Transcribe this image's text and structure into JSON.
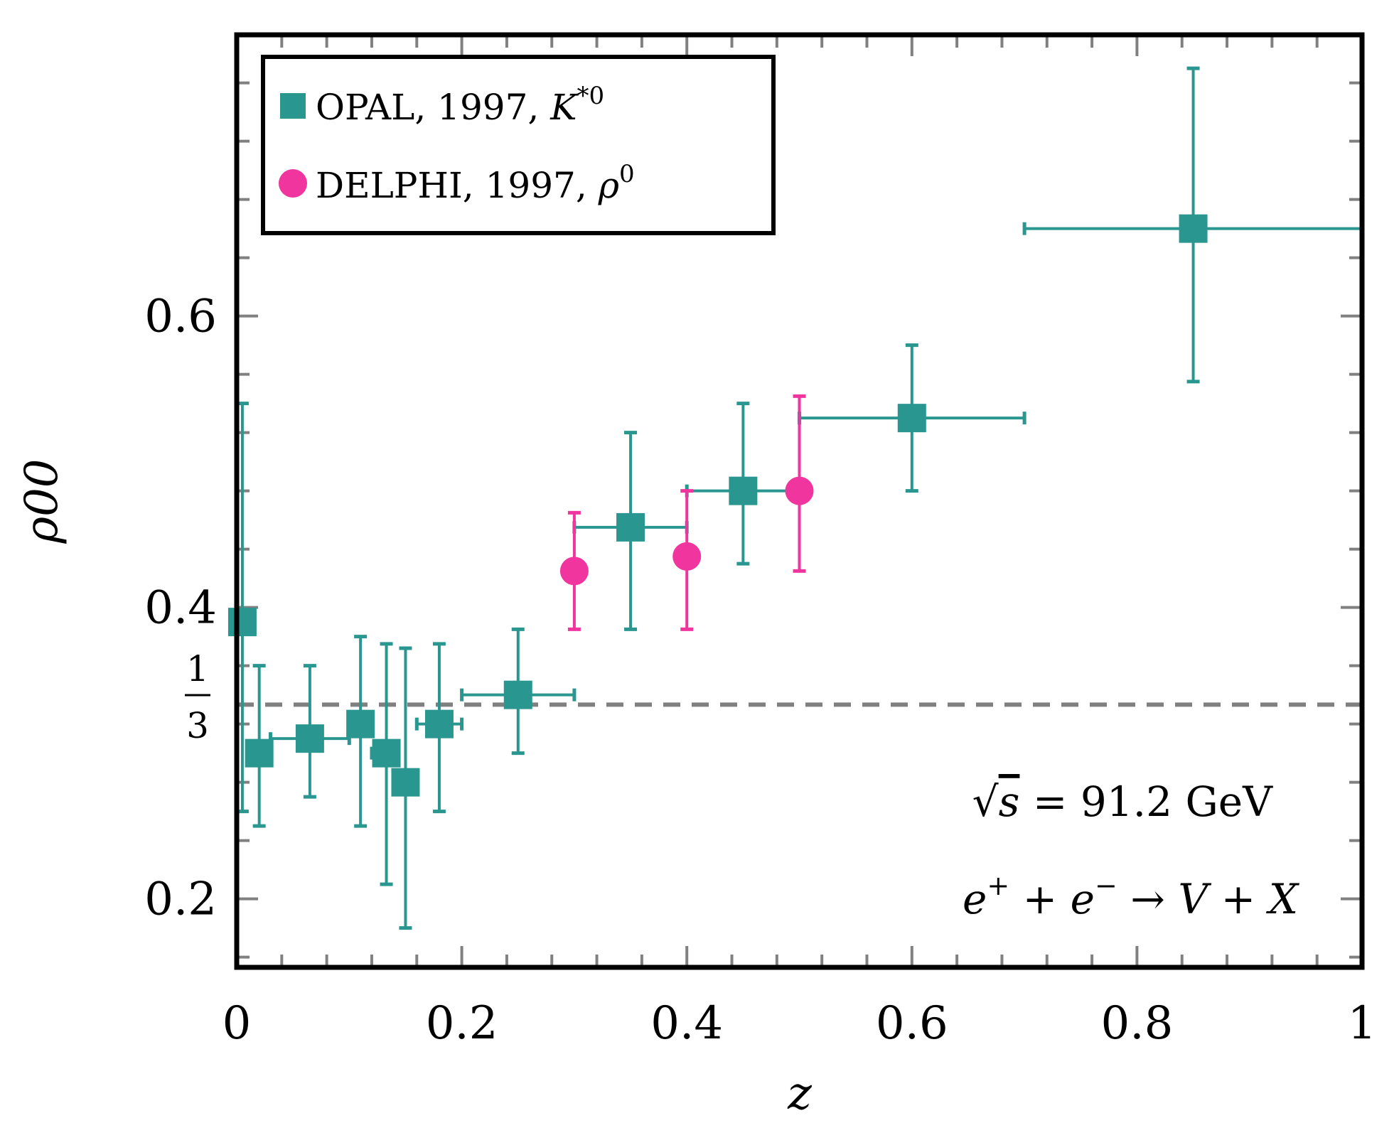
{
  "chart_data": {
    "type": "scatter",
    "xlabel": "z",
    "ylabel": "ρ00",
    "xlim": [
      0,
      1
    ],
    "ylim": [
      0.153,
      0.793
    ],
    "x_ticks": [
      {
        "value": 0,
        "label": "0"
      },
      {
        "value": 0.2,
        "label": "0.2"
      },
      {
        "value": 0.4,
        "label": "0.4"
      },
      {
        "value": 0.6,
        "label": "0.6"
      },
      {
        "value": 0.8,
        "label": "0.8"
      },
      {
        "value": 1,
        "label": "1"
      }
    ],
    "y_ticks": [
      {
        "value": 0.2,
        "label": "0.2"
      },
      {
        "value": 0.4,
        "label": "0.4"
      },
      {
        "value": 0.6,
        "label": "0.6"
      }
    ],
    "reference_line": {
      "value": 0.3333,
      "label_num": "1",
      "label_den": "3",
      "color": "#808080",
      "style": "dashed"
    },
    "annotations": {
      "energy": {
        "sqrt": "√",
        "var": "s",
        "rest": " = 91.2 GeV"
      },
      "process": {
        "e1": "e",
        "sup1": "+",
        "plus1": " + ",
        "e2": "e",
        "sup2": "−",
        "arrow": " → ",
        "v": "V",
        "plus2": " + ",
        "x": "X"
      }
    },
    "series": [
      {
        "name": "OPAL, 1997, K*0",
        "legend": {
          "text": "OPAL, 1997, ",
          "sym": "K",
          "sup": "*0"
        },
        "marker": "square",
        "color": "#2a9690",
        "points": [
          {
            "x": 0.005,
            "y": 0.39,
            "xlo": 0.005,
            "xhi": 0.005,
            "ylo": 0.26,
            "yhi": 0.54
          },
          {
            "x": 0.02,
            "y": 0.3,
            "xlo": 0.01,
            "xhi": 0.03,
            "ylo": 0.25,
            "yhi": 0.36
          },
          {
            "x": 0.065,
            "y": 0.31,
            "xlo": 0.03,
            "xhi": 0.1,
            "ylo": 0.27,
            "yhi": 0.36
          },
          {
            "x": 0.11,
            "y": 0.32,
            "xlo": 0.1,
            "xhi": 0.12,
            "ylo": 0.25,
            "yhi": 0.38
          },
          {
            "x": 0.133,
            "y": 0.3,
            "xlo": 0.12,
            "xhi": 0.14,
            "ylo": 0.21,
            "yhi": 0.375
          },
          {
            "x": 0.15,
            "y": 0.28,
            "xlo": 0.14,
            "xhi": 0.16,
            "ylo": 0.18,
            "yhi": 0.372
          },
          {
            "x": 0.18,
            "y": 0.32,
            "xlo": 0.16,
            "xhi": 0.2,
            "ylo": 0.26,
            "yhi": 0.375
          },
          {
            "x": 0.25,
            "y": 0.34,
            "xlo": 0.2,
            "xhi": 0.3,
            "ylo": 0.3,
            "yhi": 0.385
          },
          {
            "x": 0.35,
            "y": 0.455,
            "xlo": 0.3,
            "xhi": 0.4,
            "ylo": 0.385,
            "yhi": 0.52
          },
          {
            "x": 0.45,
            "y": 0.48,
            "xlo": 0.4,
            "xhi": 0.5,
            "ylo": 0.43,
            "yhi": 0.54
          },
          {
            "x": 0.6,
            "y": 0.53,
            "xlo": 0.5,
            "xhi": 0.7,
            "ylo": 0.48,
            "yhi": 0.58
          },
          {
            "x": 0.85,
            "y": 0.66,
            "xlo": 0.7,
            "xhi": 1.0,
            "ylo": 0.555,
            "yhi": 0.77
          }
        ]
      },
      {
        "name": "DELPHI, 1997, ρ0",
        "legend": {
          "text": "DELPHI, 1997, ",
          "sym": "ρ",
          "sup": "0"
        },
        "marker": "circle",
        "color": "#f0359f",
        "points": [
          {
            "x": 0.3,
            "y": 0.425,
            "ylo": 0.385,
            "yhi": 0.465
          },
          {
            "x": 0.4,
            "y": 0.435,
            "ylo": 0.385,
            "yhi": 0.48
          },
          {
            "x": 0.5,
            "y": 0.48,
            "ylo": 0.425,
            "yhi": 0.545
          }
        ]
      }
    ]
  }
}
